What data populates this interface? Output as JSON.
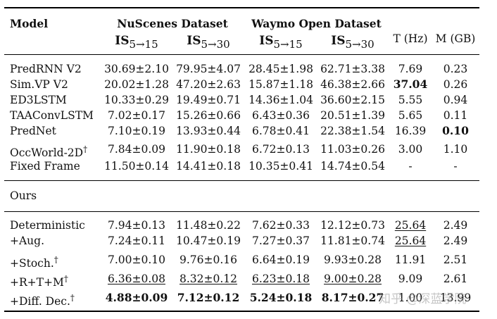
{
  "header": {
    "model": "Model",
    "group1": "NuScenes Dataset",
    "group2": "Waymo Open Dataset",
    "is_a": {
      "base": "IS",
      "sub": "5→15"
    },
    "is_b": {
      "base": "IS",
      "sub": "5→30"
    },
    "t_hz": "T (Hz)",
    "m_gb": "M (GB)"
  },
  "baselines": [
    {
      "name": "PredRNN V2",
      "dag": "",
      "v": [
        "30.69±2.10",
        "79.95±4.07",
        "28.45±1.98",
        "62.71±3.38",
        "7.69",
        "0.23"
      ],
      "bold": [],
      "ul": []
    },
    {
      "name": "Sim.VP V2",
      "dag": "",
      "v": [
        "20.02±1.28",
        "47.20±2.63",
        "15.87±1.18",
        "46.38±2.66",
        "37.04",
        "0.26"
      ],
      "bold": [
        4
      ],
      "ul": []
    },
    {
      "name": "ED3LSTM",
      "dag": "",
      "v": [
        "10.33±0.29",
        "19.49±0.71",
        "14.36±1.04",
        "36.60±2.15",
        "5.55",
        "0.94"
      ],
      "bold": [],
      "ul": []
    },
    {
      "name": "TAAConvLSTM",
      "dag": "",
      "v": [
        "7.02±0.17",
        "15.26±0.66",
        "6.43±0.36",
        "20.51±1.39",
        "5.65",
        "0.11"
      ],
      "bold": [],
      "ul": []
    },
    {
      "name": "PredNet",
      "dag": "",
      "v": [
        "7.10±0.19",
        "13.93±0.44",
        "6.78±0.41",
        "22.38±1.54",
        "16.39",
        "0.10"
      ],
      "bold": [
        5
      ],
      "ul": []
    },
    {
      "name": "OccWorld-2D",
      "dag": "†",
      "v": [
        "7.84±0.09",
        "11.90±0.18",
        "6.72±0.13",
        "11.03±0.26",
        "3.00",
        "1.10"
      ],
      "bold": [],
      "ul": []
    },
    {
      "name": "Fixed Frame",
      "dag": "",
      "v": [
        "11.50±0.14",
        "14.41±0.18",
        "10.35±0.41",
        "14.74±0.54",
        "-",
        "-"
      ],
      "bold": [],
      "ul": []
    }
  ],
  "ours_label": "Ours",
  "ours": [
    {
      "name": "Deterministic",
      "dag": "",
      "v": [
        "7.94±0.13",
        "11.48±0.22",
        "7.62±0.33",
        "12.12±0.73",
        "25.64",
        "2.49"
      ],
      "bold": [],
      "ul": [
        4
      ]
    },
    {
      "name": "+Aug.",
      "dag": "",
      "v": [
        "7.24±0.11",
        "10.47±0.19",
        "7.27±0.37",
        "11.81±0.74",
        "25.64",
        "2.49"
      ],
      "bold": [],
      "ul": [
        4
      ]
    },
    {
      "name": "+Stoch.",
      "dag": "†",
      "v": [
        "7.00±0.10",
        "9.76±0.16",
        "6.64±0.19",
        "9.93±0.28",
        "11.91",
        "2.51"
      ],
      "bold": [],
      "ul": []
    },
    {
      "name": "+R+T+M",
      "dag": "†",
      "v": [
        "6.36±0.08",
        "8.32±0.12",
        "6.23±0.18",
        "9.00±0.28",
        "9.09",
        "2.61"
      ],
      "bold": [],
      "ul": [
        0,
        1,
        2,
        3
      ]
    },
    {
      "name": "+Diff. Dec.",
      "dag": "†",
      "v": [
        "4.88±0.09",
        "7.12±0.12",
        "5.24±0.18",
        "8.17±0.27",
        "1.00",
        "13.99"
      ],
      "bold": [
        0,
        1,
        2,
        3
      ],
      "ul": []
    }
  ],
  "watermark": "知乎 @深蓝学院"
}
